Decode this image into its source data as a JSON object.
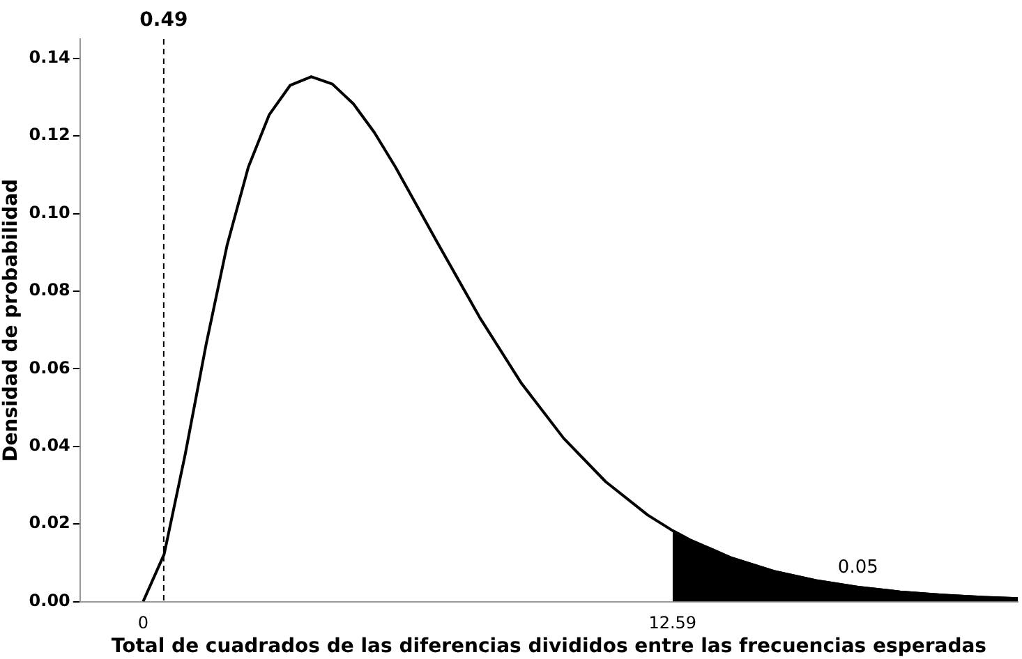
{
  "chart_data": {
    "type": "line",
    "xlabel": "Total de cuadrados de las diferencias divididos entre las frecuencias esperadas",
    "ylabel": "Densidad de probabilidad",
    "xlim": [
      -1.5,
      20.8
    ],
    "xticks": [
      0,
      12.59
    ],
    "ylim": [
      0,
      0.145
    ],
    "yticks": [
      {
        "value": 0,
        "label": "0.00"
      },
      {
        "value": 0.02,
        "label": "0.02"
      },
      {
        "value": 0.04,
        "label": "0.04"
      },
      {
        "value": 0.06,
        "label": "0.06"
      },
      {
        "value": 0.08,
        "label": "0.08"
      },
      {
        "value": 0.1,
        "label": "0.10"
      },
      {
        "value": 0.12,
        "label": "0.12"
      },
      {
        "value": 0.14,
        "label": "0.14"
      }
    ],
    "series": [
      {
        "type": "line",
        "color": "#000000",
        "x": [
          0,
          0.5,
          1,
          1.5,
          2,
          2.5,
          3,
          3.5,
          4,
          4.5,
          5,
          5.5,
          6,
          7,
          8,
          9,
          10,
          11,
          12,
          12.59,
          13,
          14,
          15,
          16,
          17,
          18,
          19,
          20,
          20.8
        ],
        "values": [
          0,
          0.0122,
          0.0379,
          0.0664,
          0.092,
          0.1119,
          0.1255,
          0.1331,
          0.1353,
          0.1334,
          0.1283,
          0.1209,
          0.112,
          0.0925,
          0.0733,
          0.0562,
          0.0421,
          0.0309,
          0.0223,
          0.0183,
          0.0159,
          0.0112,
          0.0078,
          0.0054,
          0.0037,
          0.0025,
          0.0017,
          0.0011,
          0.0008
        ]
      },
      {
        "type": "area",
        "color": "#000000",
        "x": [
          12.59,
          13,
          14,
          15,
          16,
          17,
          18,
          19,
          20,
          20.8
        ],
        "values": [
          0.0183,
          0.0159,
          0.0112,
          0.0078,
          0.0054,
          0.0037,
          0.0025,
          0.0017,
          0.0011,
          0.0008
        ]
      }
    ],
    "ref_lines": [
      {
        "axis": "x",
        "value": 0.49,
        "label": "0.49",
        "line_style": "dashed",
        "color": "#000000"
      }
    ],
    "annotations": [
      "0.05"
    ],
    "grid": false,
    "legend": false,
    "marker": "none",
    "line_style": "solid"
  }
}
